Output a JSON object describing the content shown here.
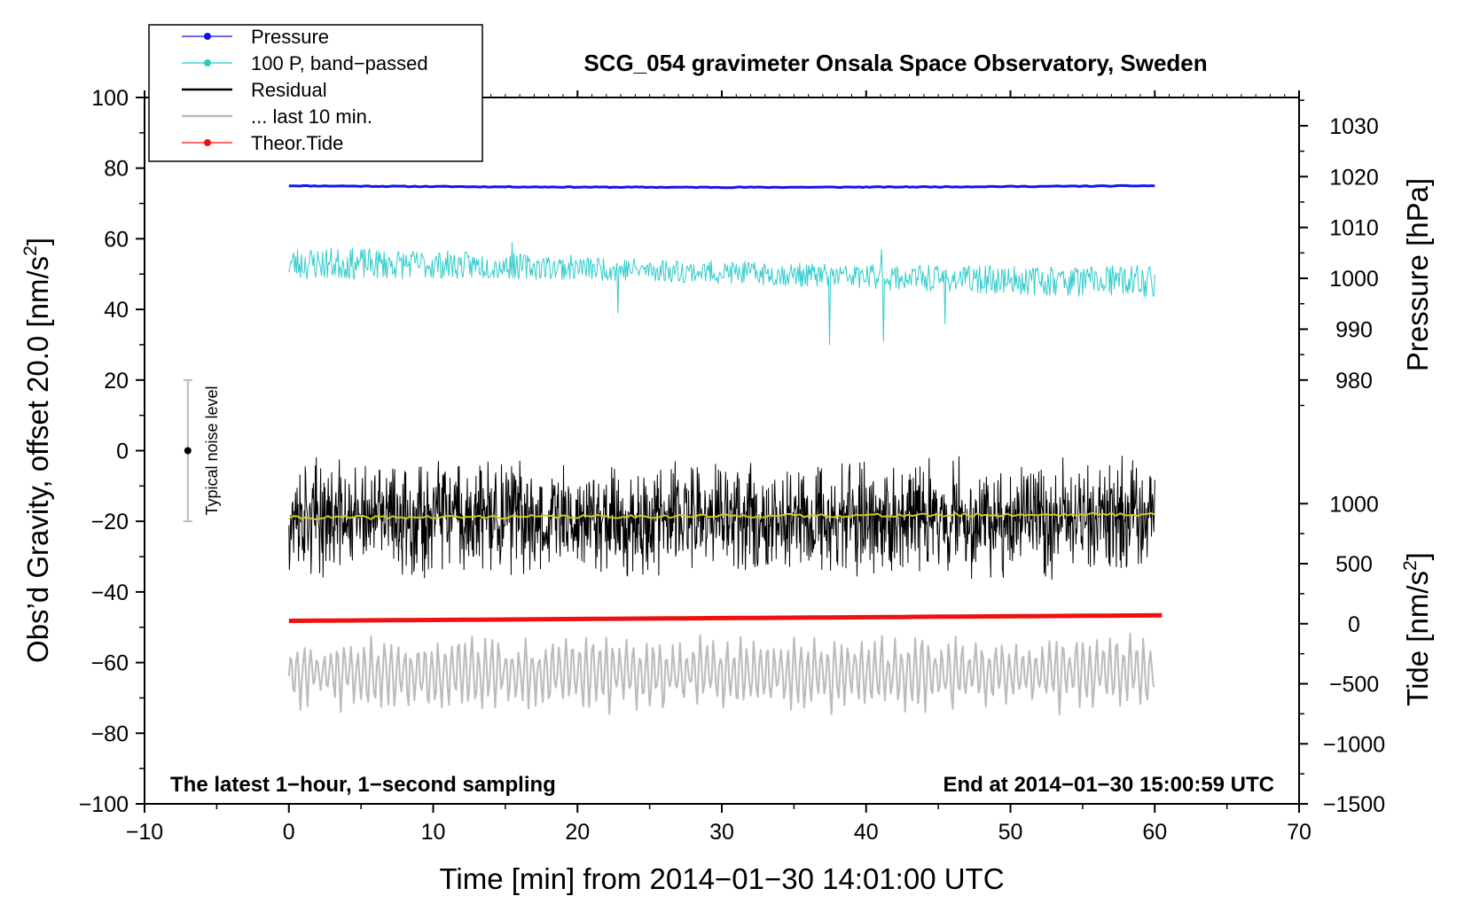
{
  "chart_data": {
    "type": "line",
    "title": "SCG_054 gravimeter Onsala Space Observatory, Sweden",
    "xlabel": "Time [min] from 2014−01−30 14:01:00 UTC",
    "ylabel_main": "Obs’d Gravity, offset 20.0 [nm/s",
    "ylabel_sup": "2",
    "ylabel_close": "]",
    "ylabel_pressure": "Pressure [hPa]",
    "ylabel_tide_main": "Tide [nm/s",
    "ylabel_tide_sup": "2",
    "ylabel_tide_close": "]",
    "xlim": [
      -10,
      70
    ],
    "ylim": [
      -100,
      100
    ],
    "x_ticks": [
      "−10",
      "0",
      "10",
      "20",
      "30",
      "40",
      "50",
      "60",
      "70"
    ],
    "x_tick_values": [
      -10,
      0,
      10,
      20,
      30,
      40,
      50,
      60,
      70
    ],
    "y_ticks": [
      "100",
      "80",
      "60",
      "40",
      "20",
      "0",
      "−20",
      "−40",
      "−60",
      "−80",
      "−100"
    ],
    "y_tick_values": [
      100,
      80,
      60,
      40,
      20,
      0,
      -20,
      -40,
      -60,
      -80,
      -100
    ],
    "pressure_ticks": [
      "1030",
      "1020",
      "1010",
      "1000",
      "990",
      "980"
    ],
    "pressure_tick_values": [
      1030,
      1020,
      1010,
      1000,
      990,
      980
    ],
    "pressure_map": {
      "hpa": [
        980,
        1030
      ],
      "gravity": [
        20,
        92
      ]
    },
    "tide_ticks": [
      "1000",
      "500",
      "0",
      "−500",
      "−1000",
      "−1500"
    ],
    "tide_tick_values": [
      1000,
      500,
      0,
      -500,
      -1000,
      -1500
    ],
    "tide_map": {
      "nms2": [
        -1500,
        1000
      ],
      "gravity": [
        -100,
        -15
      ]
    },
    "annotation_left": "The latest 1−hour, 1−second sampling",
    "annotation_right": "End at 2014−01−30 15:00:59 UTC",
    "noise_label": "Typical noise level",
    "noise_bar": {
      "x": -7,
      "low": -20,
      "high": 20,
      "center": 0
    },
    "legend_position": "top-left",
    "legend": [
      {
        "label": "Pressure",
        "color": "#1010ee",
        "marker": true
      },
      {
        "label": "100 P, band−passed",
        "color": "#22cccc",
        "marker": true
      },
      {
        "label": "Residual",
        "color": "#000000",
        "marker": false
      },
      {
        "label": "... last 10 min.",
        "color": "#bbbbbb",
        "marker": false
      },
      {
        "label": "Theor.Tide",
        "color": "#ee1111",
        "marker": true
      }
    ],
    "series": [
      {
        "name": "Pressure",
        "color": "#1515ee",
        "unit": "hPa",
        "x_range": [
          0,
          60
        ],
        "start": 1018.2,
        "end": 1018.2,
        "noise": 0.15,
        "seed": 11,
        "width": 3
      },
      {
        "name": "100 P, band-passed",
        "color": "#33cccc",
        "unit": "nm/s2 (plot)",
        "x_range": [
          0,
          60
        ],
        "mean": 50.5,
        "noise": 6,
        "seed": 23,
        "width": 1,
        "spikes": [
          [
            37.5,
            30
          ],
          [
            41.2,
            31
          ],
          [
            22.8,
            39
          ],
          [
            45.5,
            36
          ],
          [
            15.5,
            59
          ],
          [
            41.1,
            57
          ]
        ]
      },
      {
        "name": "Residual",
        "color": "#000000",
        "unit": "nm/s2 (plot)",
        "x_range": [
          0,
          60
        ],
        "mean": -19,
        "noise": 13,
        "seed": 37,
        "width": 1
      },
      {
        "name": "Residual smoothed",
        "color": "#cccc22",
        "unit": "nm/s2 (plot)",
        "x_range": [
          0,
          60
        ],
        "start": -19,
        "end": -18,
        "noise": 1,
        "seed": 41,
        "width": 2
      },
      {
        "name": "... last 10 min.",
        "color": "#bbbbbb",
        "unit": "nm/s2 (plot)",
        "x_range": [
          0,
          60
        ],
        "mean": -63,
        "noise": 14,
        "seed": 53,
        "width": 2
      },
      {
        "name": "Theor.Tide",
        "color": "#ee1111",
        "unit": "nm/s2",
        "x_range": [
          0,
          60.5
        ],
        "start": 24,
        "end": 70,
        "width": 5
      }
    ]
  }
}
